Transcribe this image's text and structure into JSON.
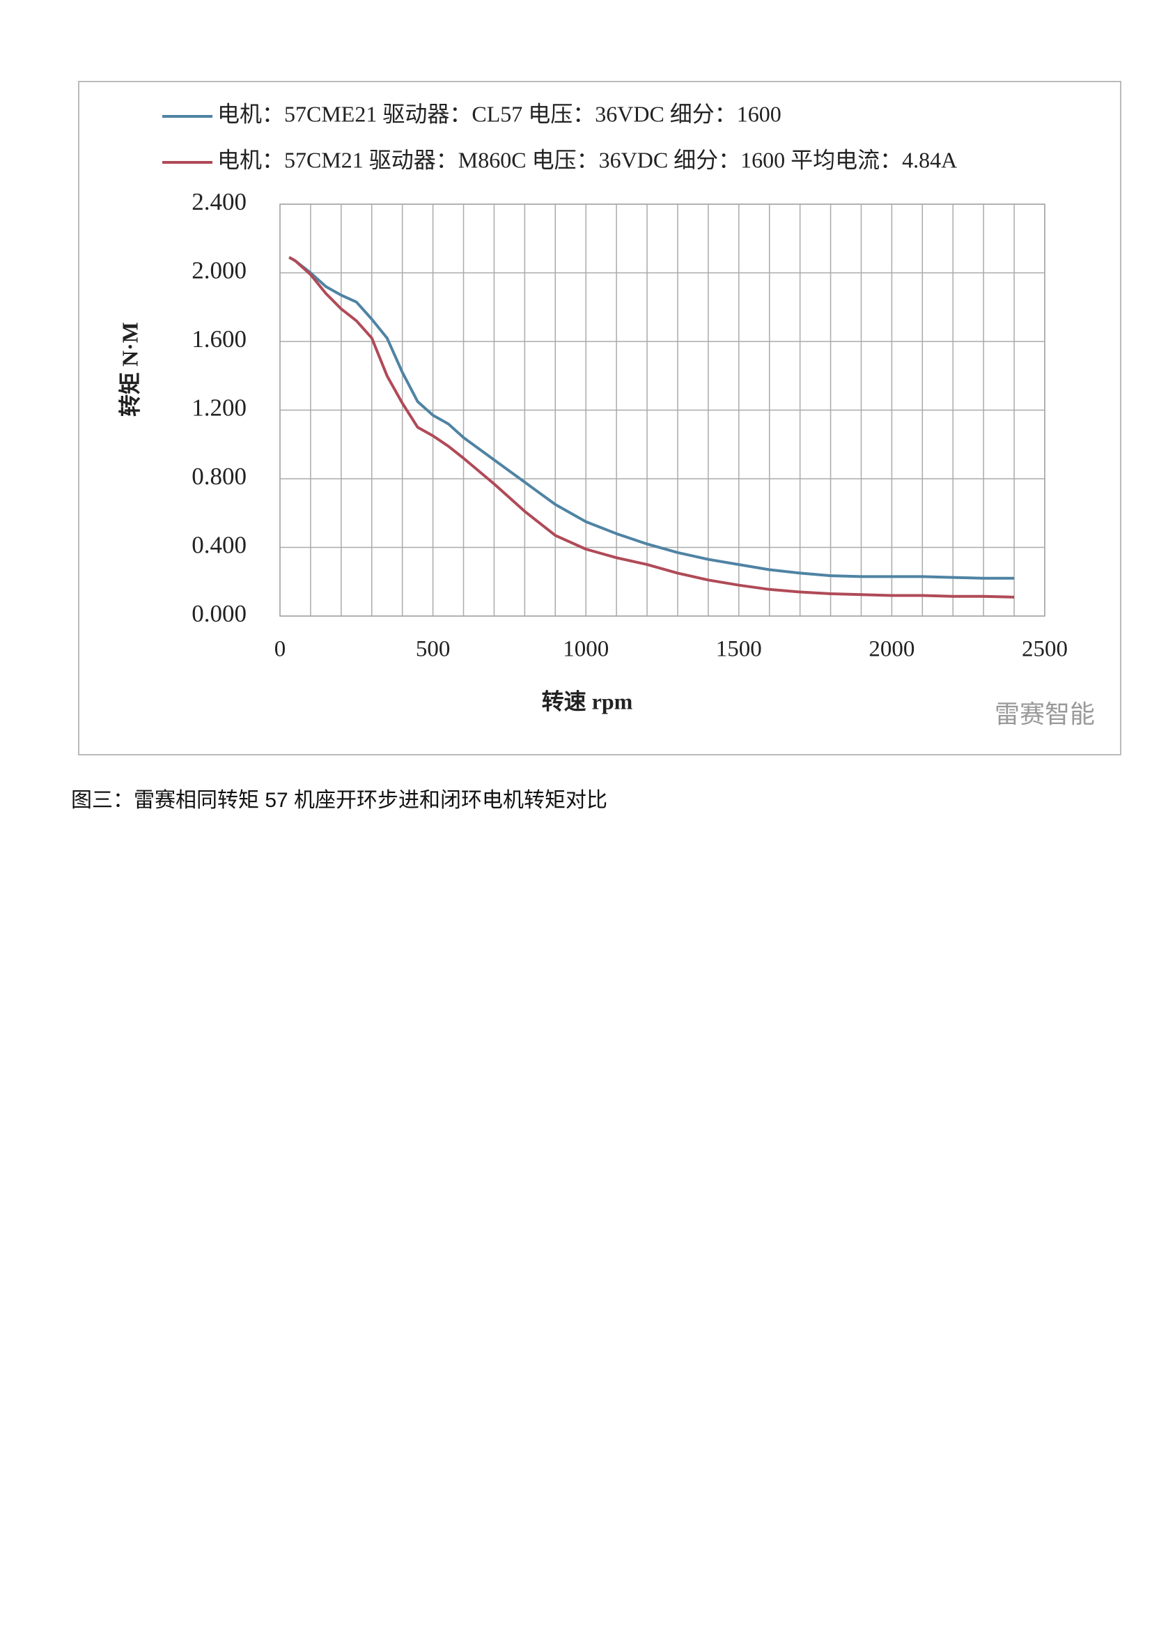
{
  "chart_data": {
    "type": "line",
    "legend_labels_note_free": null,
    "x": [
      30,
      50,
      100,
      150,
      200,
      250,
      300,
      350,
      400,
      450,
      500,
      550,
      600,
      700,
      800,
      900,
      1000,
      1100,
      1200,
      1300,
      1400,
      1500,
      1600,
      1700,
      1800,
      1900,
      2000,
      2100,
      2200,
      2300,
      2400
    ],
    "series": [
      {
        "name": "电机：57CME21 驱动器：CL57 电压：36VDC 细分：1600",
        "color": "#4f83a3",
        "values": [
          2.09,
          2.07,
          2.0,
          1.92,
          1.87,
          1.83,
          1.73,
          1.62,
          1.42,
          1.25,
          1.17,
          1.12,
          1.04,
          0.91,
          0.78,
          0.65,
          0.55,
          0.48,
          0.42,
          0.37,
          0.33,
          0.3,
          0.27,
          0.25,
          0.235,
          0.23,
          0.23,
          0.23,
          0.225,
          0.22,
          0.22
        ]
      },
      {
        "name": "电机：57CM21 驱动器：M860C 电压：36VDC 细分：1600 平均电流：4.84A",
        "color": "#b04a57",
        "values": [
          2.09,
          2.07,
          1.99,
          1.88,
          1.79,
          1.72,
          1.62,
          1.4,
          1.24,
          1.1,
          1.05,
          0.99,
          0.92,
          0.77,
          0.61,
          0.47,
          0.39,
          0.34,
          0.3,
          0.25,
          0.21,
          0.18,
          0.155,
          0.14,
          0.13,
          0.125,
          0.12,
          0.12,
          0.115,
          0.115,
          0.11
        ]
      }
    ],
    "xlabel": "转速 rpm",
    "ylabel": "转矩 N·M",
    "xlim": [
      0,
      2500
    ],
    "xticks": [
      0,
      500,
      1000,
      1500,
      2000,
      2500
    ],
    "xminorticks": [
      100,
      200,
      300,
      400,
      600,
      700,
      800,
      900,
      1100,
      1200,
      1300,
      1400,
      1600,
      1700,
      1800,
      1900,
      2100,
      2200,
      2300,
      2400
    ],
    "ylim": [
      0,
      2.4
    ],
    "yticks": [
      {
        "value": 0,
        "label": "0.000"
      },
      {
        "value": 0.4,
        "label": "0.400"
      },
      {
        "value": 0.8,
        "label": "0.800"
      },
      {
        "value": 1.2,
        "label": "1.200"
      },
      {
        "value": 1.6,
        "label": "1.600"
      },
      {
        "value": 2.0,
        "label": "2.000"
      },
      {
        "value": 2.4,
        "label": "2.400"
      }
    ],
    "grid": true,
    "legend": "top"
  },
  "watermark": "雷赛智能",
  "caption": "图三：雷赛相同转矩 57 机座开环步进和闭环电机转矩对比"
}
